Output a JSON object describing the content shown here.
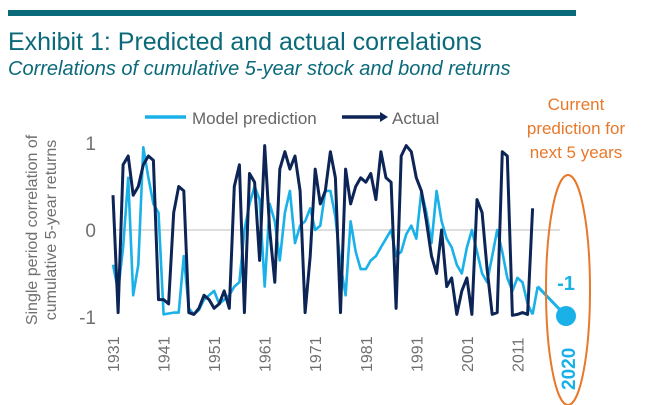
{
  "header": {
    "title": "Exhibit 1: Predicted and actual correlations",
    "subtitle": "Correlations of cumulative 5-year stock and bond returns"
  },
  "colors": {
    "accent": "#0b6a7a",
    "model": "#1ab0e8",
    "actual": "#0c2456",
    "callout": "#e8782a",
    "axis_text": "#707070"
  },
  "chart_data": {
    "type": "line",
    "ylabel": "Single period correlation of cumulative 5-year returns",
    "ylim": [
      -1,
      1
    ],
    "yticks": [
      {
        "value": 1,
        "label": "1"
      },
      {
        "value": 0,
        "label": "0"
      },
      {
        "value": -1,
        "label": "-1"
      }
    ],
    "xlim": [
      1931,
      2021
    ],
    "xticks": [
      "1931",
      "1941",
      "1951",
      "1961",
      "1971",
      "1981",
      "1991",
      "2001",
      "2011"
    ],
    "legend": {
      "position": "top",
      "entries": [
        "Model prediction",
        "Actual"
      ]
    },
    "series": [
      {
        "name": "Model prediction",
        "x": [
          1931,
          1932,
          1933,
          1934,
          1935,
          1936,
          1937,
          1938,
          1939,
          1940,
          1941,
          1942,
          1943,
          1944,
          1945,
          1946,
          1947,
          1948,
          1949,
          1950,
          1951,
          1952,
          1953,
          1954,
          1955,
          1956,
          1957,
          1958,
          1959,
          1960,
          1961,
          1962,
          1963,
          1964,
          1965,
          1966,
          1967,
          1968,
          1969,
          1970,
          1971,
          1972,
          1973,
          1974,
          1975,
          1976,
          1977,
          1978,
          1979,
          1980,
          1981,
          1982,
          1983,
          1984,
          1985,
          1986,
          1987,
          1988,
          1989,
          1990,
          1991,
          1992,
          1993,
          1994,
          1995,
          1996,
          1997,
          1998,
          1999,
          2000,
          2001,
          2002,
          2003,
          2004,
          2005,
          2006,
          2007,
          2008,
          2009,
          2010,
          2011,
          2012,
          2013,
          2014
        ],
        "y": [
          -0.4,
          -0.7,
          -0.2,
          0.6,
          -0.75,
          -0.4,
          0.95,
          0.6,
          0.3,
          0.2,
          -0.97,
          -0.96,
          -0.95,
          -0.95,
          -0.3,
          -0.9,
          -0.97,
          -0.92,
          -0.8,
          -0.75,
          -0.7,
          -0.85,
          -0.8,
          -0.75,
          -0.65,
          -0.6,
          0.0,
          0.3,
          0.5,
          0.35,
          -0.65,
          0.3,
          0.1,
          -0.35,
          0.2,
          0.45,
          -0.15,
          0.05,
          0.1,
          0.25,
          0.0,
          0.05,
          0.45,
          0.45,
          0.15,
          -0.4,
          -0.75,
          0.1,
          -0.25,
          -0.45,
          -0.45,
          -0.35,
          -0.3,
          -0.2,
          -0.1,
          0.0,
          -0.3,
          -0.25,
          -0.05,
          0.05,
          -0.1,
          0.45,
          0.2,
          -0.15,
          0.45,
          0.1,
          -0.1,
          -0.2,
          -0.4,
          -0.5,
          -0.2,
          0.0,
          -0.25,
          -0.5,
          -0.6,
          -0.3,
          0.0,
          -0.25,
          -0.55,
          -0.7,
          -0.55,
          -0.6,
          -0.85,
          -0.97
        ],
        "prediction": {
          "label_year": "2020",
          "value": -1,
          "value_label": "-1",
          "segment_from": 2015
        }
      },
      {
        "name": "Actual",
        "x": [
          1931,
          1932,
          1933,
          1934,
          1935,
          1936,
          1937,
          1938,
          1939,
          1940,
          1941,
          1942,
          1943,
          1944,
          1945,
          1946,
          1947,
          1948,
          1949,
          1950,
          1951,
          1952,
          1953,
          1954,
          1955,
          1956,
          1957,
          1958,
          1959,
          1960,
          1961,
          1962,
          1963,
          1964,
          1965,
          1966,
          1967,
          1968,
          1969,
          1970,
          1971,
          1972,
          1973,
          1974,
          1975,
          1976,
          1977,
          1978,
          1979,
          1980,
          1981,
          1982,
          1983,
          1984,
          1985,
          1986,
          1987,
          1988,
          1989,
          1990,
          1991,
          1992,
          1993,
          1994,
          1995,
          1996,
          1997,
          1998,
          1999,
          2000,
          2001,
          2002,
          2003,
          2004,
          2005,
          2006,
          2007,
          2008,
          2009,
          2010,
          2011,
          2012,
          2013,
          2014
        ],
        "y": [
          0.4,
          -0.95,
          0.75,
          0.85,
          0.4,
          0.5,
          0.75,
          0.85,
          0.8,
          -0.8,
          -0.8,
          -0.85,
          0.2,
          0.5,
          0.45,
          -0.95,
          -0.97,
          -0.9,
          -0.75,
          -0.8,
          -0.9,
          -0.85,
          -0.7,
          -0.9,
          0.5,
          0.75,
          -0.95,
          0.65,
          0.55,
          -0.35,
          0.97,
          0.0,
          -0.6,
          0.7,
          0.9,
          0.7,
          0.85,
          0.45,
          -0.95,
          -0.3,
          0.7,
          0.3,
          0.45,
          0.9,
          0.6,
          -0.95,
          0.7,
          0.3,
          0.5,
          0.6,
          0.55,
          0.65,
          0.35,
          0.9,
          0.6,
          0.55,
          -0.9,
          0.85,
          0.97,
          0.9,
          0.6,
          0.45,
          0.1,
          -0.3,
          -0.5,
          0.0,
          -0.65,
          -0.55,
          -0.97,
          -0.7,
          -0.55,
          -0.97,
          0.35,
          0.2,
          -0.45,
          -0.97,
          -0.95,
          0.9,
          0.85,
          -0.98,
          -0.97,
          -0.95,
          -0.97,
          0.25
        ]
      }
    ],
    "annotations": {
      "callout": "Current prediction for next 5 years",
      "callout_lines": [
        "Current",
        "prediction for",
        "next 5 years"
      ]
    }
  }
}
